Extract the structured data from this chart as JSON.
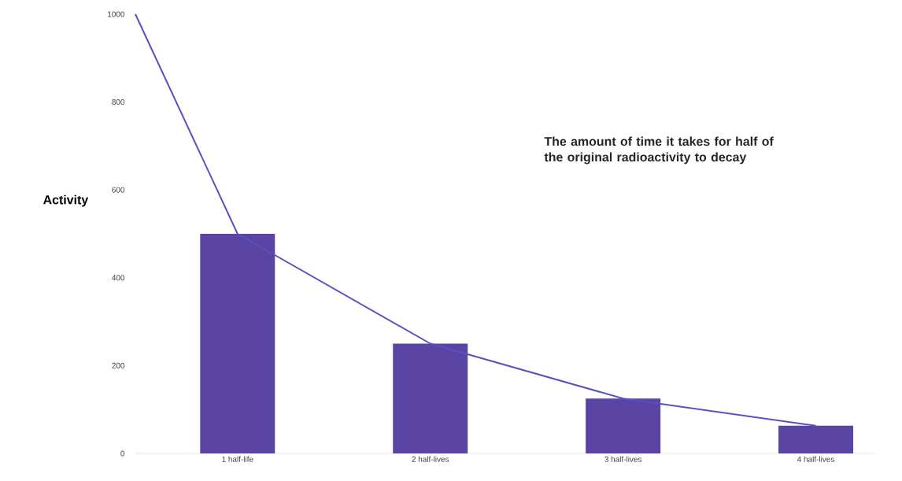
{
  "chart_data": {
    "type": "bar",
    "ylabel": "Activity",
    "annotations": [
      "The amount of time it takes for half of the original radioactivity to decay"
    ],
    "x": [
      1,
      2,
      3,
      4
    ],
    "xlim": [
      0.47,
      4.3
    ],
    "xticks": [
      {
        "value": 1,
        "label": "1 half-life"
      },
      {
        "value": 2,
        "label": "2 half-lives"
      },
      {
        "value": 3,
        "label": "3 half-lives"
      },
      {
        "value": 4,
        "label": "4 half-lives"
      }
    ],
    "ylim": [
      0,
      1000
    ],
    "yticks": [
      0,
      200,
      400,
      600,
      800,
      1000
    ],
    "series": [
      {
        "color": "#5a45a5",
        "values": [
          500,
          250,
          125,
          63
        ]
      },
      {
        "type": "line",
        "color": "#5b4fc2",
        "x": [
          0.47,
          1,
          2,
          3,
          4
        ],
        "values": [
          1000,
          500,
          250,
          125,
          63
        ]
      }
    ]
  }
}
